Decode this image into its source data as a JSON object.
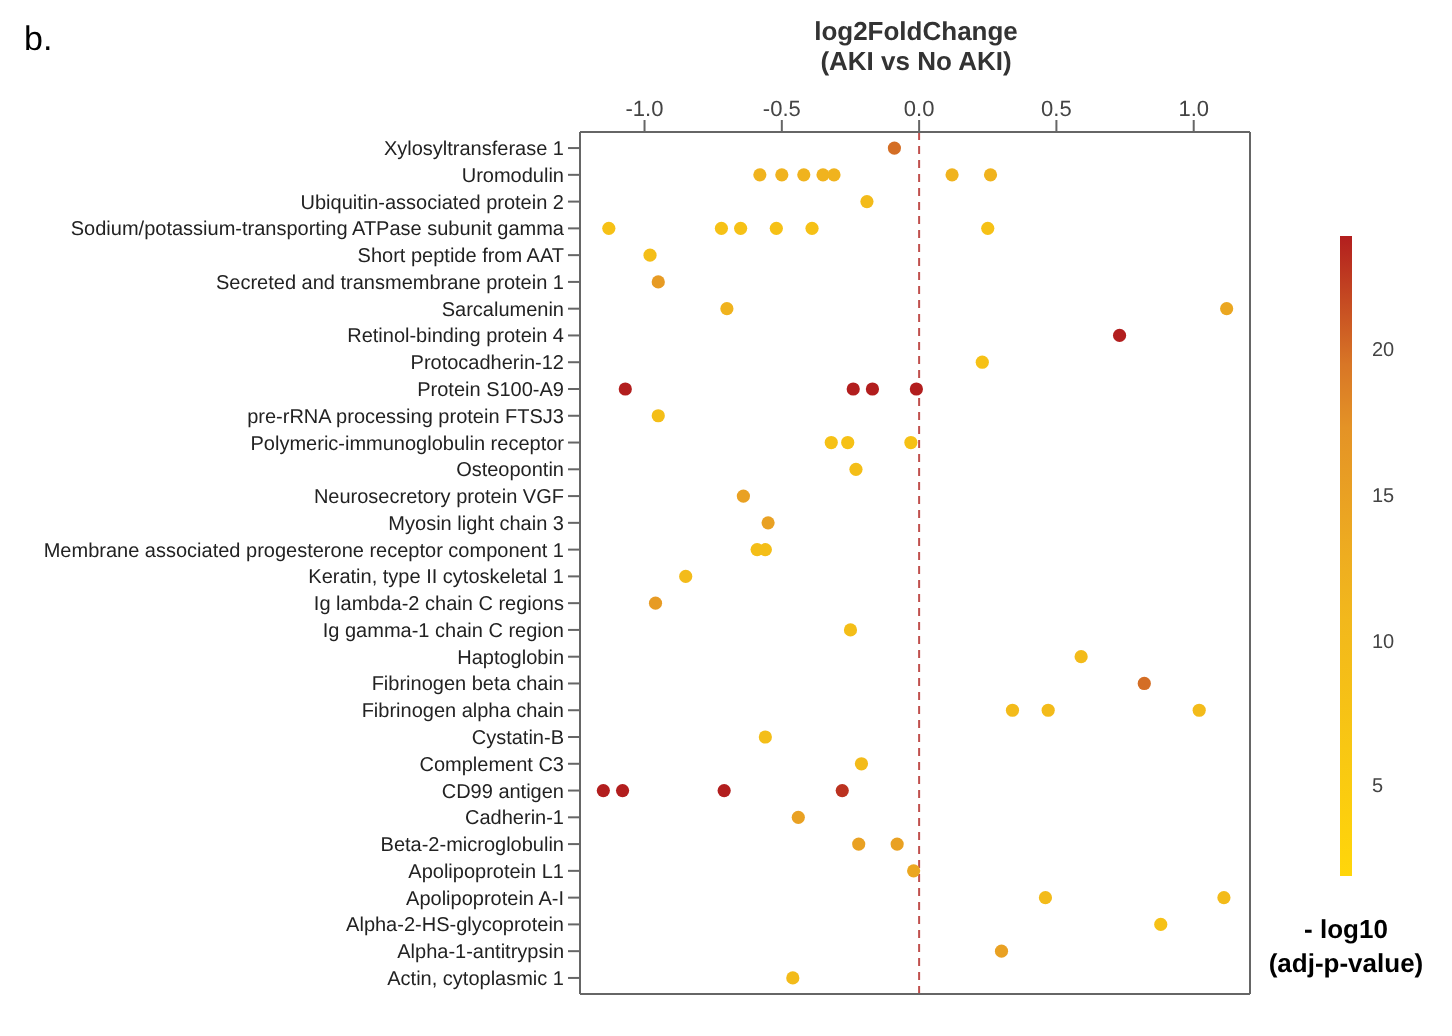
{
  "chart_data": {
    "type": "scatter",
    "orientation": "horizontal",
    "xlabel": "log2FoldChange\n(AKI vs No AKI)",
    "clabel": "- log10\n(adj-p-value)",
    "annotations": [
      "b."
    ],
    "categories": [
      "Xylosyltransferase 1",
      "Uromodulin",
      "Ubiquitin-associated protein 2",
      "Sodium/potassium-transporting ATPase subunit gamma",
      "Short peptide from AAT",
      "Secreted and transmembrane protein 1",
      "Sarcalumenin",
      "Retinol-binding protein 4",
      "Protocadherin-12",
      "Protein S100-A9",
      "pre-rRNA processing protein FTSJ3",
      "Polymeric-immunoglobulin receptor",
      "Osteopontin",
      "Neurosecretory protein VGF",
      "Myosin light chain 3",
      "Membrane associated progesterone receptor component 1",
      "Keratin, type II cytoskeletal 1",
      "Ig lambda-2 chain C regions",
      "Ig gamma-1 chain C region",
      "Haptoglobin",
      "Fibrinogen beta chain",
      "Fibrinogen alpha chain",
      "Cystatin-B",
      "Complement C3",
      "CD99 antigen",
      "Cadherin-1",
      "Beta-2-microglobulin",
      "Apolipoprotein L1",
      "Apolipoprotein A-I",
      "Alpha-2-HS-glycoprotein",
      "Alpha-1-antitrypsin",
      "Actin, cytoplasmic 1"
    ],
    "series": [
      {
        "x": [
          "Xylosyltransferase 1",
          "Uromodulin",
          "Uromodulin",
          "Uromodulin",
          "Uromodulin",
          "Uromodulin",
          "Uromodulin",
          "Uromodulin",
          "Ubiquitin-associated protein 2",
          "Sodium/potassium-transporting ATPase subunit gamma",
          "Sodium/potassium-transporting ATPase subunit gamma",
          "Sodium/potassium-transporting ATPase subunit gamma",
          "Sodium/potassium-transporting ATPase subunit gamma",
          "Sodium/potassium-transporting ATPase subunit gamma",
          "Sodium/potassium-transporting ATPase subunit gamma",
          "Short peptide from AAT",
          "Secreted and transmembrane protein 1",
          "Sarcalumenin",
          "Sarcalumenin",
          "Retinol-binding protein 4",
          "Protocadherin-12",
          "Protein S100-A9",
          "Protein S100-A9",
          "Protein S100-A9",
          "Protein S100-A9",
          "pre-rRNA processing protein FTSJ3",
          "Polymeric-immunoglobulin receptor",
          "Polymeric-immunoglobulin receptor",
          "Polymeric-immunoglobulin receptor",
          "Osteopontin",
          "Neurosecretory protein VGF",
          "Myosin light chain 3",
          "Membrane associated progesterone receptor component 1",
          "Membrane associated progesterone receptor component 1",
          "Keratin, type II cytoskeletal 1",
          "Ig lambda-2 chain C regions",
          "Ig gamma-1 chain C region",
          "Haptoglobin",
          "Fibrinogen beta chain",
          "Fibrinogen alpha chain",
          "Fibrinogen alpha chain",
          "Fibrinogen alpha chain",
          "Cystatin-B",
          "Complement C3",
          "CD99 antigen",
          "CD99 antigen",
          "CD99 antigen",
          "CD99 antigen",
          "Cadherin-1",
          "Beta-2-microglobulin",
          "Beta-2-microglobulin",
          "Apolipoprotein L1",
          "Apolipoprotein A-I",
          "Apolipoprotein A-I",
          "Alpha-2-HS-glycoprotein",
          "Alpha-1-antitrypsin",
          "Actin, cytoplasmic 1"
        ],
        "values": [
          -0.09,
          -0.58,
          -0.5,
          -0.42,
          -0.35,
          -0.31,
          0.12,
          0.26,
          -0.19,
          -1.13,
          -0.72,
          -0.65,
          -0.52,
          -0.39,
          0.25,
          -0.98,
          -0.95,
          -0.7,
          1.12,
          0.73,
          0.23,
          -1.07,
          -0.24,
          -0.17,
          -0.01,
          -0.95,
          -0.32,
          -0.26,
          -0.03,
          -0.23,
          -0.64,
          -0.55,
          -0.59,
          -0.56,
          -0.85,
          -0.96,
          -0.25,
          0.59,
          0.82,
          0.34,
          0.47,
          1.02,
          -0.56,
          -0.21,
          -1.15,
          -1.08,
          -0.71,
          -0.28,
          -0.44,
          -0.22,
          -0.08,
          -0.02,
          0.46,
          1.11,
          0.88,
          0.3,
          -0.46
        ],
        "cvalues": [
          20,
          12,
          12,
          12,
          12,
          12,
          12,
          12,
          10,
          8,
          8,
          8,
          8,
          8,
          8,
          9,
          16,
          12,
          14,
          24,
          8,
          24,
          24,
          24,
          24,
          9,
          8,
          8,
          8,
          9,
          15,
          15,
          9,
          9,
          10,
          16,
          9,
          10,
          20,
          10,
          10,
          10,
          9,
          10,
          24,
          24,
          24,
          23,
          15,
          15,
          15,
          14,
          10,
          10,
          8,
          15,
          10
        ]
      }
    ],
    "xlim": [
      -1.235,
      1.205
    ],
    "xticks": [
      {
        "value": -1,
        "label": "-1.0"
      },
      -0.5,
      {
        "value": 0,
        "label": "0.0"
      },
      0.5,
      {
        "value": 1,
        "label": "1.0"
      }
    ],
    "clim": [
      2,
      24
    ],
    "cticks": [
      5,
      10,
      15,
      20
    ],
    "ref_lines": [
      {
        "axis": "x",
        "value": 0,
        "color": "#c0504d",
        "line_style": "dashed"
      }
    ],
    "marker": "circle"
  }
}
